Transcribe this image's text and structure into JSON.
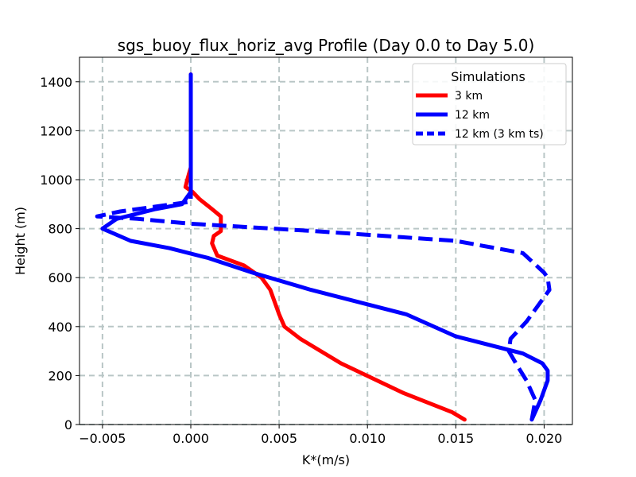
{
  "chart_data": {
    "type": "line",
    "title": "sgs_buoy_flux_horiz_avg Profile (Day 0.0 to Day 5.0)",
    "xlabel": "K*(m/s)",
    "ylabel": "Height (m)",
    "xlim": [
      -0.0063,
      0.0216
    ],
    "ylim": [
      0,
      1500
    ],
    "xticks": [
      -0.005,
      0.0,
      0.005,
      0.01,
      0.015,
      0.02
    ],
    "xtick_labels": [
      "−0.005",
      "0.000",
      "0.005",
      "0.010",
      "0.015",
      "0.020"
    ],
    "yticks": [
      0,
      200,
      400,
      600,
      800,
      1000,
      1200,
      1400
    ],
    "ytick_labels": [
      "0",
      "200",
      "400",
      "600",
      "800",
      "1000",
      "1200",
      "1400"
    ],
    "grid": true,
    "legend": {
      "title": "Simulations",
      "placement": "top-right"
    },
    "series": [
      {
        "name": "3 km",
        "color": "#ff0000",
        "linestyle": "solid",
        "x": [
          0.0155,
          0.0148,
          0.012,
          0.0085,
          0.0062,
          0.0053,
          0.005,
          0.0045,
          0.004,
          0.003,
          0.0015,
          0.0012,
          0.0013,
          0.0017,
          0.0017,
          0.0012,
          0.0005,
          0.0001,
          -0.0003,
          -0.0002,
          0.0,
          0.0,
          0.0,
          0.0
        ],
        "y": [
          20,
          50,
          130,
          250,
          350,
          400,
          450,
          550,
          600,
          650,
          690,
          740,
          770,
          790,
          850,
          880,
          920,
          950,
          970,
          1000,
          1050,
          1100,
          1200,
          1430
        ]
      },
      {
        "name": "12 km",
        "color": "#0000ff",
        "linestyle": "solid",
        "x": [
          0.0193,
          0.0198,
          0.0202,
          0.0202,
          0.0199,
          0.0188,
          0.015,
          0.0122,
          0.0068,
          0.0035,
          0.001,
          -0.0012,
          -0.0034,
          -0.005,
          -0.0042,
          -0.002,
          -0.0005,
          0.0,
          0.0,
          0.0,
          0.0
        ],
        "y": [
          20,
          100,
          180,
          220,
          250,
          290,
          360,
          450,
          550,
          620,
          680,
          720,
          750,
          800,
          840,
          880,
          900,
          950,
          1000,
          1100,
          1430
        ]
      },
      {
        "name": "12 km (3 km ts)",
        "color": "#0000ff",
        "linestyle": "dashed",
        "x": [
          0.0193,
          0.0195,
          0.019,
          0.0184,
          0.018,
          0.0181,
          0.019,
          0.0203,
          0.0202,
          0.02,
          0.0188,
          0.015,
          0.007,
          0.0,
          -0.003,
          -0.0053,
          -0.004,
          -0.002,
          0.0,
          0.0,
          0.0
        ],
        "y": [
          20,
          100,
          180,
          250,
          300,
          350,
          420,
          550,
          600,
          620,
          700,
          750,
          790,
          820,
          840,
          850,
          870,
          890,
          910,
          1000,
          1430
        ]
      }
    ]
  }
}
